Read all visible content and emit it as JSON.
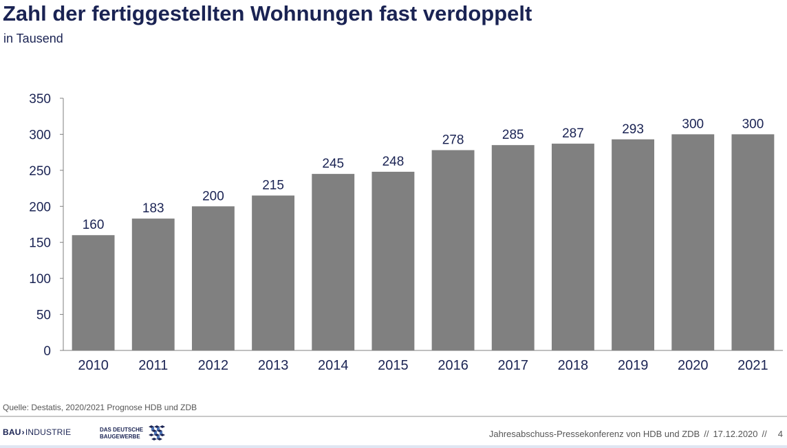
{
  "header": {
    "title": "Zahl der fertiggestellten Wohnungen fast verdoppelt",
    "subtitle": "in Tausend"
  },
  "chart_data": {
    "type": "bar",
    "title": "",
    "xlabel": "",
    "ylabel": "",
    "categories": [
      "2010",
      "2011",
      "2012",
      "2013",
      "2014",
      "2015",
      "2016",
      "2017",
      "2018",
      "2019",
      "2020",
      "2021"
    ],
    "values": [
      160,
      183,
      200,
      215,
      245,
      248,
      278,
      285,
      287,
      293,
      300,
      300
    ],
    "ylim": [
      0,
      350
    ],
    "yticks": [
      0,
      50,
      100,
      150,
      200,
      250,
      300,
      350
    ],
    "grid": false,
    "legend": "none",
    "bar_color": "#808080",
    "data_labels": true
  },
  "source": "Quelle: Destatis, 2020/2021 Prognose HDB und ZDB",
  "footer": {
    "logo_bau_part1": "BAU",
    "logo_bau_chevron": "›",
    "logo_bau_part2": "INDUSTRIE",
    "logo_zdb_line1": "DAS DEUTSCHE",
    "logo_zdb_line2": "BAUGEWERBE",
    "event": "Jahresabschuss-Pressekonferenz von HDB und ZDB",
    "separator": "//",
    "date": "17.12.2020",
    "page": "4"
  },
  "colors": {
    "title": "#1a2353",
    "bar": "#808080",
    "text": "#1a2353"
  }
}
